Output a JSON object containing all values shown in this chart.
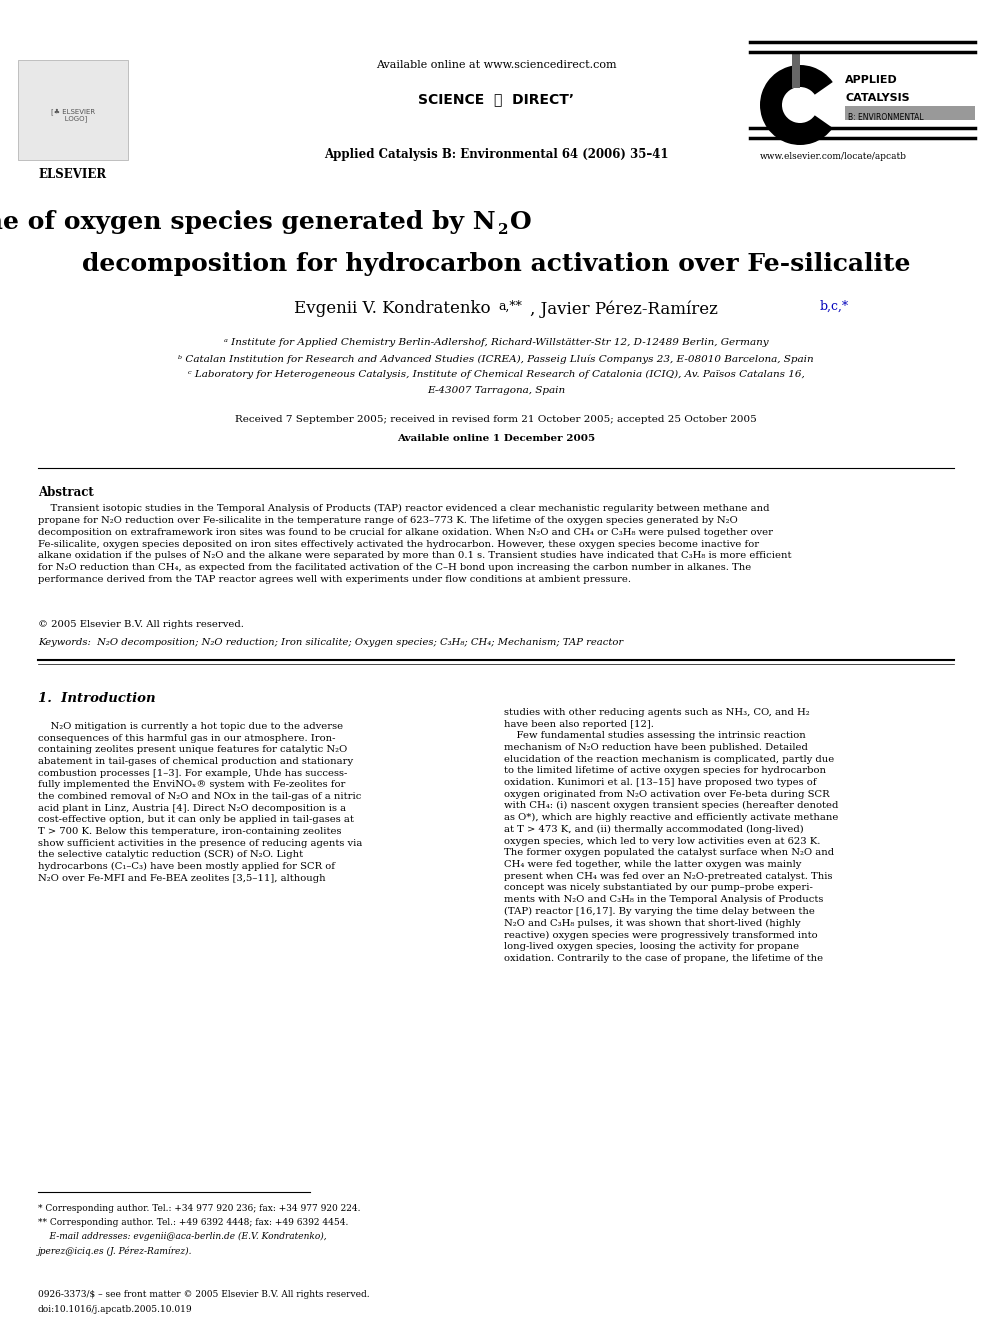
{
  "header_center": "Available online at www.sciencedirect.com",
  "sciencedirect": "SCIENCE  ⓓ  DIRECTʼ",
  "journal_line": "Applied Catalysis B: Environmental 64 (2006) 35–41",
  "website": "www.elsevier.com/locate/apcatb",
  "title_line1": "Importance of the lifetime of oxygen species generated by N",
  "title_sub": "2",
  "title_end": "O",
  "title_line2": "decomposition for hydrocarbon activation over Fe-silicalite",
  "author1": "Evgenii V. Kondratenko ",
  "author1_sup": "a,**",
  "author2": ", Javier Pérez-Ramírez ",
  "author2_sup": "b,c,*",
  "affil_a": "ᵃ Institute for Applied Chemistry Berlin-Adlershof, Richard-Willstätter-Str 12, D-12489 Berlin, Germany",
  "affil_b": "ᵇ Catalan Institution for Research and Advanced Studies (ICREA), Passeig Lluís Companys 23, E-08010 Barcelona, Spain",
  "affil_c1": "ᶜ Laboratory for Heterogeneous Catalysis, Institute of Chemical Research of Catalonia (ICIQ), Av. Països Catalans 16,",
  "affil_c2": "E-43007 Tarragona, Spain",
  "dates": "Received 7 September 2005; received in revised form 21 October 2005; accepted 25 October 2005",
  "available": "Available online 1 December 2005",
  "abstract_title": "Abstract",
  "abstract_body": "    Transient isotopic studies in the Temporal Analysis of Products (TAP) reactor evidenced a clear mechanistic regularity between methane and\npropane for N₂O reduction over Fe-silicalite in the temperature range of 623–773 K. The lifetime of the oxygen species generated by N₂O\ndecomposition on extraframework iron sites was found to be crucial for alkane oxidation. When N₂O and CH₄ or C₃H₈ were pulsed together over\nFe-silicalite, oxygen species deposited on iron sites effectively activated the hydrocarbon. However, these oxygen species become inactive for\nalkane oxidation if the pulses of N₂O and the alkane were separated by more than 0.1 s. Transient studies have indicated that C₃H₈ is more efficient\nfor N₂O reduction than CH₄, as expected from the facilitated activation of the C–H bond upon increasing the carbon number in alkanes. The\nperformance derived from the TAP reactor agrees well with experiments under flow conditions at ambient pressure.",
  "copyright": "© 2005 Elsevier B.V. All rights reserved.",
  "keywords": "Keywords:  N₂O decomposition; N₂O reduction; Iron silicalite; Oxygen species; C₃H₈; CH₄; Mechanism; TAP reactor",
  "sec1_title": "1.  Introduction",
  "intro_col1": "    N₂O mitigation is currently a hot topic due to the adverse\nconsequences of this harmful gas in our atmosphere. Iron-\ncontaining zeolites present unique features for catalytic N₂O\nabatement in tail-gases of chemical production and stationary\ncombustion processes [1–3]. For example, Uhde has success-\nfully implemented the EnviNOₓ® system with Fe-zeolites for\nthe combined removal of N₂O and NOx in the tail-gas of a nitric\nacid plant in Linz, Austria [4]. Direct N₂O decomposition is a\ncost-effective option, but it can only be applied in tail-gases at\nT > 700 K. Below this temperature, iron-containing zeolites\nshow sufficient activities in the presence of reducing agents via\nthe selective catalytic reduction (SCR) of N₂O. Light\nhydrocarbons (C₁–C₃) have been mostly applied for SCR of\nN₂O over Fe-MFI and Fe-BEA zeolites [3,5–11], although",
  "intro_col2": "studies with other reducing agents such as NH₃, CO, and H₂\nhave been also reported [12].\n    Few fundamental studies assessing the intrinsic reaction\nmechanism of N₂O reduction have been published. Detailed\nelucidation of the reaction mechanism is complicated, partly due\nto the limited lifetime of active oxygen species for hydrocarbon\noxidation. Kunimori et al. [13–15] have proposed two types of\noxygen originated from N₂O activation over Fe-beta during SCR\nwith CH₄: (i) nascent oxygen transient species (hereafter denoted\nas O*), which are highly reactive and efficiently activate methane\nat T > 473 K, and (ii) thermally accommodated (long-lived)\noxygen species, which led to very low activities even at 623 K.\nThe former oxygen populated the catalyst surface when N₂O and\nCH₄ were fed together, while the latter oxygen was mainly\npresent when CH₄ was fed over an N₂O-pretreated catalyst. This\nconcept was nicely substantiated by our pump–probe experi-\nments with N₂O and C₃H₈ in the Temporal Analysis of Products\n(TAP) reactor [16,17]. By varying the time delay between the\nN₂O and C₃H₈ pulses, it was shown that short-lived (highly\nreactive) oxygen species were progressively transformed into\nlong-lived oxygen species, loosing the activity for propane\noxidation. Contrarily to the case of propane, the lifetime of the",
  "fn_star": "* Corresponding author. Tel.: +34 977 920 236; fax: +34 977 920 224.",
  "fn_dstar": "** Corresponding author. Tel.: +49 6392 4448; fax: +49 6392 4454.",
  "fn_email1": "    E-mail addresses: evgenii@aca-berlin.de (E.V. Kondratenko),",
  "fn_email2": "jperez@iciq.es (J. Pérez-Ramírez).",
  "issn_text": "0926-3373/$ – see front matter © 2005 Elsevier B.V. All rights reserved.",
  "doi_text": "doi:10.1016/j.apcatb.2005.10.019",
  "bg_color": "#ffffff",
  "black": "#000000",
  "blue": "#0000bb"
}
